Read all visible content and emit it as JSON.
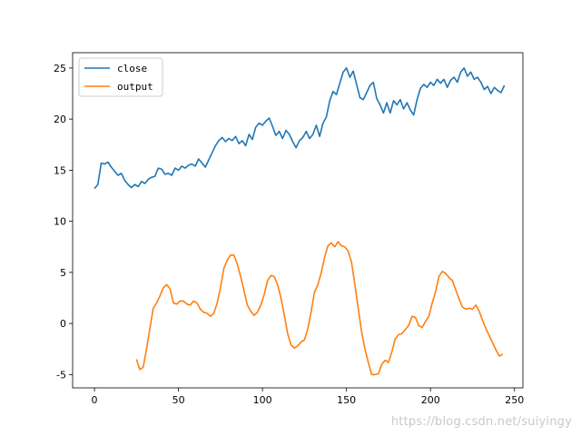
{
  "chart_data": {
    "type": "line",
    "title": "",
    "xlabel": "",
    "ylabel": "",
    "xlim": [
      -13,
      255
    ],
    "ylim": [
      -6.3,
      26.5
    ],
    "xticks": [
      0,
      50,
      100,
      150,
      200,
      250
    ],
    "yticks": [
      -5,
      0,
      5,
      10,
      15,
      20,
      25
    ],
    "grid": false,
    "legend": {
      "position": "upper-left"
    },
    "series": [
      {
        "name": "close",
        "color": "#1f77b4",
        "points": [
          [
            0,
            13.2
          ],
          [
            2,
            13.6
          ],
          [
            4,
            15.7
          ],
          [
            6,
            15.6
          ],
          [
            8,
            15.8
          ],
          [
            10,
            15.3
          ],
          [
            12,
            14.9
          ],
          [
            14,
            14.5
          ],
          [
            16,
            14.7
          ],
          [
            18,
            14.0
          ],
          [
            20,
            13.6
          ],
          [
            22,
            13.3
          ],
          [
            24,
            13.6
          ],
          [
            26,
            13.4
          ],
          [
            28,
            13.9
          ],
          [
            30,
            13.7
          ],
          [
            32,
            14.1
          ],
          [
            34,
            14.3
          ],
          [
            36,
            14.4
          ],
          [
            38,
            15.2
          ],
          [
            40,
            15.1
          ],
          [
            42,
            14.6
          ],
          [
            44,
            14.7
          ],
          [
            46,
            14.5
          ],
          [
            48,
            15.2
          ],
          [
            50,
            15.0
          ],
          [
            52,
            15.4
          ],
          [
            54,
            15.2
          ],
          [
            56,
            15.5
          ],
          [
            58,
            15.6
          ],
          [
            60,
            15.4
          ],
          [
            62,
            16.1
          ],
          [
            64,
            15.7
          ],
          [
            66,
            15.3
          ],
          [
            68,
            16.0
          ],
          [
            70,
            16.7
          ],
          [
            72,
            17.4
          ],
          [
            74,
            17.9
          ],
          [
            76,
            18.2
          ],
          [
            78,
            17.8
          ],
          [
            80,
            18.1
          ],
          [
            82,
            17.9
          ],
          [
            84,
            18.3
          ],
          [
            86,
            17.6
          ],
          [
            88,
            17.9
          ],
          [
            90,
            17.4
          ],
          [
            92,
            18.5
          ],
          [
            94,
            18.0
          ],
          [
            96,
            19.2
          ],
          [
            98,
            19.6
          ],
          [
            100,
            19.4
          ],
          [
            102,
            19.8
          ],
          [
            104,
            20.1
          ],
          [
            106,
            19.3
          ],
          [
            108,
            18.4
          ],
          [
            110,
            18.8
          ],
          [
            112,
            18.1
          ],
          [
            114,
            18.9
          ],
          [
            116,
            18.5
          ],
          [
            118,
            17.8
          ],
          [
            120,
            17.2
          ],
          [
            122,
            17.9
          ],
          [
            124,
            18.2
          ],
          [
            126,
            18.8
          ],
          [
            128,
            18.1
          ],
          [
            130,
            18.5
          ],
          [
            132,
            19.4
          ],
          [
            134,
            18.3
          ],
          [
            136,
            19.6
          ],
          [
            138,
            20.2
          ],
          [
            140,
            21.8
          ],
          [
            142,
            22.7
          ],
          [
            144,
            22.4
          ],
          [
            146,
            23.5
          ],
          [
            148,
            24.6
          ],
          [
            150,
            25.0
          ],
          [
            152,
            24.1
          ],
          [
            154,
            24.7
          ],
          [
            156,
            23.4
          ],
          [
            158,
            22.1
          ],
          [
            160,
            21.9
          ],
          [
            162,
            22.6
          ],
          [
            164,
            23.3
          ],
          [
            166,
            23.6
          ],
          [
            168,
            22.0
          ],
          [
            170,
            21.4
          ],
          [
            172,
            20.6
          ],
          [
            174,
            21.6
          ],
          [
            176,
            20.6
          ],
          [
            178,
            21.8
          ],
          [
            180,
            21.4
          ],
          [
            182,
            21.9
          ],
          [
            184,
            21.0
          ],
          [
            186,
            21.6
          ],
          [
            188,
            20.9
          ],
          [
            190,
            20.4
          ],
          [
            192,
            21.9
          ],
          [
            194,
            23.0
          ],
          [
            196,
            23.4
          ],
          [
            198,
            23.1
          ],
          [
            200,
            23.6
          ],
          [
            202,
            23.3
          ],
          [
            204,
            23.9
          ],
          [
            206,
            23.5
          ],
          [
            208,
            23.9
          ],
          [
            210,
            23.1
          ],
          [
            212,
            23.8
          ],
          [
            214,
            24.1
          ],
          [
            216,
            23.6
          ],
          [
            218,
            24.6
          ],
          [
            220,
            25.0
          ],
          [
            222,
            24.2
          ],
          [
            224,
            24.6
          ],
          [
            226,
            23.9
          ],
          [
            228,
            24.1
          ],
          [
            230,
            23.6
          ],
          [
            232,
            22.9
          ],
          [
            234,
            23.2
          ],
          [
            236,
            22.5
          ],
          [
            238,
            23.1
          ],
          [
            240,
            22.8
          ],
          [
            242,
            22.6
          ],
          [
            244,
            23.3
          ]
        ]
      },
      {
        "name": "output",
        "color": "#ff7f0e",
        "points": [
          [
            25,
            -3.5
          ],
          [
            27,
            -4.5
          ],
          [
            29,
            -4.3
          ],
          [
            31,
            -2.5
          ],
          [
            33,
            -0.5
          ],
          [
            35,
            1.5
          ],
          [
            37,
            2.0
          ],
          [
            39,
            2.7
          ],
          [
            41,
            3.5
          ],
          [
            43,
            3.8
          ],
          [
            45,
            3.4
          ],
          [
            47,
            2.0
          ],
          [
            49,
            1.9
          ],
          [
            51,
            2.2
          ],
          [
            53,
            2.2
          ],
          [
            55,
            1.9
          ],
          [
            57,
            1.8
          ],
          [
            59,
            2.2
          ],
          [
            61,
            2.0
          ],
          [
            63,
            1.4
          ],
          [
            65,
            1.1
          ],
          [
            67,
            1.0
          ],
          [
            69,
            0.7
          ],
          [
            71,
            1.0
          ],
          [
            73,
            2.0
          ],
          [
            75,
            3.5
          ],
          [
            77,
            5.4
          ],
          [
            79,
            6.2
          ],
          [
            81,
            6.7
          ],
          [
            83,
            6.7
          ],
          [
            85,
            5.8
          ],
          [
            87,
            4.6
          ],
          [
            89,
            3.2
          ],
          [
            91,
            1.8
          ],
          [
            93,
            1.2
          ],
          [
            95,
            0.8
          ],
          [
            97,
            1.1
          ],
          [
            99,
            1.8
          ],
          [
            101,
            2.8
          ],
          [
            103,
            4.2
          ],
          [
            105,
            4.7
          ],
          [
            107,
            4.6
          ],
          [
            109,
            3.8
          ],
          [
            111,
            2.5
          ],
          [
            113,
            0.8
          ],
          [
            115,
            -1.0
          ],
          [
            117,
            -2.1
          ],
          [
            119,
            -2.4
          ],
          [
            121,
            -2.2
          ],
          [
            123,
            -1.8
          ],
          [
            125,
            -1.6
          ],
          [
            127,
            -0.5
          ],
          [
            129,
            1.2
          ],
          [
            131,
            3.1
          ],
          [
            133,
            3.8
          ],
          [
            135,
            5.0
          ],
          [
            137,
            6.5
          ],
          [
            139,
            7.6
          ],
          [
            141,
            7.9
          ],
          [
            143,
            7.5
          ],
          [
            145,
            8.0
          ],
          [
            147,
            7.6
          ],
          [
            149,
            7.5
          ],
          [
            151,
            7.1
          ],
          [
            153,
            6.0
          ],
          [
            155,
            3.8
          ],
          [
            157,
            1.5
          ],
          [
            159,
            -0.8
          ],
          [
            161,
            -2.5
          ],
          [
            163,
            -3.8
          ],
          [
            165,
            -5.0
          ],
          [
            167,
            -5.0
          ],
          [
            169,
            -4.9
          ],
          [
            171,
            -4.0
          ],
          [
            173,
            -3.6
          ],
          [
            175,
            -3.8
          ],
          [
            177,
            -2.8
          ],
          [
            179,
            -1.5
          ],
          [
            181,
            -1.1
          ],
          [
            183,
            -1.0
          ],
          [
            185,
            -0.6
          ],
          [
            187,
            -0.2
          ],
          [
            189,
            0.7
          ],
          [
            191,
            0.6
          ],
          [
            193,
            -0.2
          ],
          [
            195,
            -0.4
          ],
          [
            197,
            0.2
          ],
          [
            199,
            0.7
          ],
          [
            201,
            2.0
          ],
          [
            203,
            3.1
          ],
          [
            205,
            4.6
          ],
          [
            207,
            5.1
          ],
          [
            209,
            4.9
          ],
          [
            211,
            4.5
          ],
          [
            213,
            4.2
          ],
          [
            215,
            3.3
          ],
          [
            217,
            2.4
          ],
          [
            219,
            1.6
          ],
          [
            221,
            1.4
          ],
          [
            223,
            1.5
          ],
          [
            225,
            1.4
          ],
          [
            227,
            1.8
          ],
          [
            229,
            1.2
          ],
          [
            231,
            0.3
          ],
          [
            233,
            -0.5
          ],
          [
            235,
            -1.2
          ],
          [
            237,
            -1.9
          ],
          [
            239,
            -2.6
          ],
          [
            241,
            -3.2
          ],
          [
            243,
            -3.0
          ]
        ]
      }
    ]
  },
  "watermark": "https://blog.csdn.net/suiyingy"
}
